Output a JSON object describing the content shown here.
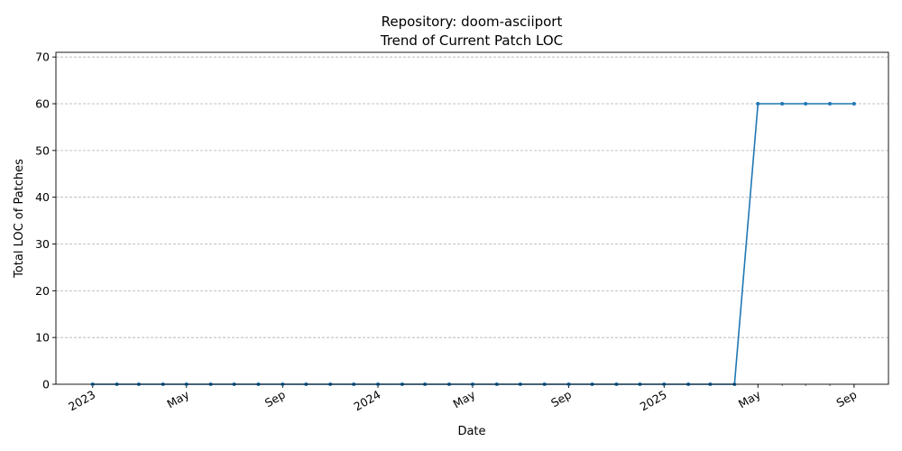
{
  "chart_data": {
    "type": "line",
    "title_line1": "Repository: doom-asciiport",
    "title_line2": "Trend of Current Patch LOC",
    "xlabel": "Date",
    "ylabel": "Total LOC of Patches",
    "ylim": [
      0,
      71
    ],
    "yticks": [
      0,
      10,
      20,
      30,
      40,
      50,
      60,
      70
    ],
    "xlim": [
      "2022-11-15",
      "2025-10-15"
    ],
    "x_major_ticks": [
      {
        "date": "2023-01-01",
        "label": "2023"
      },
      {
        "date": "2023-05-01",
        "label": "May"
      },
      {
        "date": "2023-09-01",
        "label": "Sep"
      },
      {
        "date": "2024-01-01",
        "label": "2024"
      },
      {
        "date": "2024-05-01",
        "label": "May"
      },
      {
        "date": "2024-09-01",
        "label": "Sep"
      },
      {
        "date": "2025-01-01",
        "label": "2025"
      },
      {
        "date": "2025-05-01",
        "label": "May"
      },
      {
        "date": "2025-09-01",
        "label": "Sep"
      }
    ],
    "grid": "y-dashed",
    "line_color": "#1f77b4",
    "x": [
      "2023-01-01",
      "2023-02-01",
      "2023-03-01",
      "2023-04-01",
      "2023-05-01",
      "2023-06-01",
      "2023-07-01",
      "2023-08-01",
      "2023-09-01",
      "2023-10-01",
      "2023-11-01",
      "2023-12-01",
      "2024-01-01",
      "2024-02-01",
      "2024-03-01",
      "2024-04-01",
      "2024-05-01",
      "2024-06-01",
      "2024-07-01",
      "2024-08-01",
      "2024-09-01",
      "2024-10-01",
      "2024-11-01",
      "2024-12-01",
      "2025-01-01",
      "2025-02-01",
      "2025-03-01",
      "2025-04-01",
      "2025-05-01",
      "2025-06-01",
      "2025-07-01",
      "2025-08-01",
      "2025-09-01"
    ],
    "values": [
      0,
      0,
      0,
      0,
      0,
      0,
      0,
      0,
      0,
      0,
      0,
      0,
      0,
      0,
      0,
      0,
      0,
      0,
      0,
      0,
      0,
      0,
      0,
      0,
      0,
      0,
      0,
      0,
      60,
      60,
      60,
      60,
      60
    ]
  }
}
